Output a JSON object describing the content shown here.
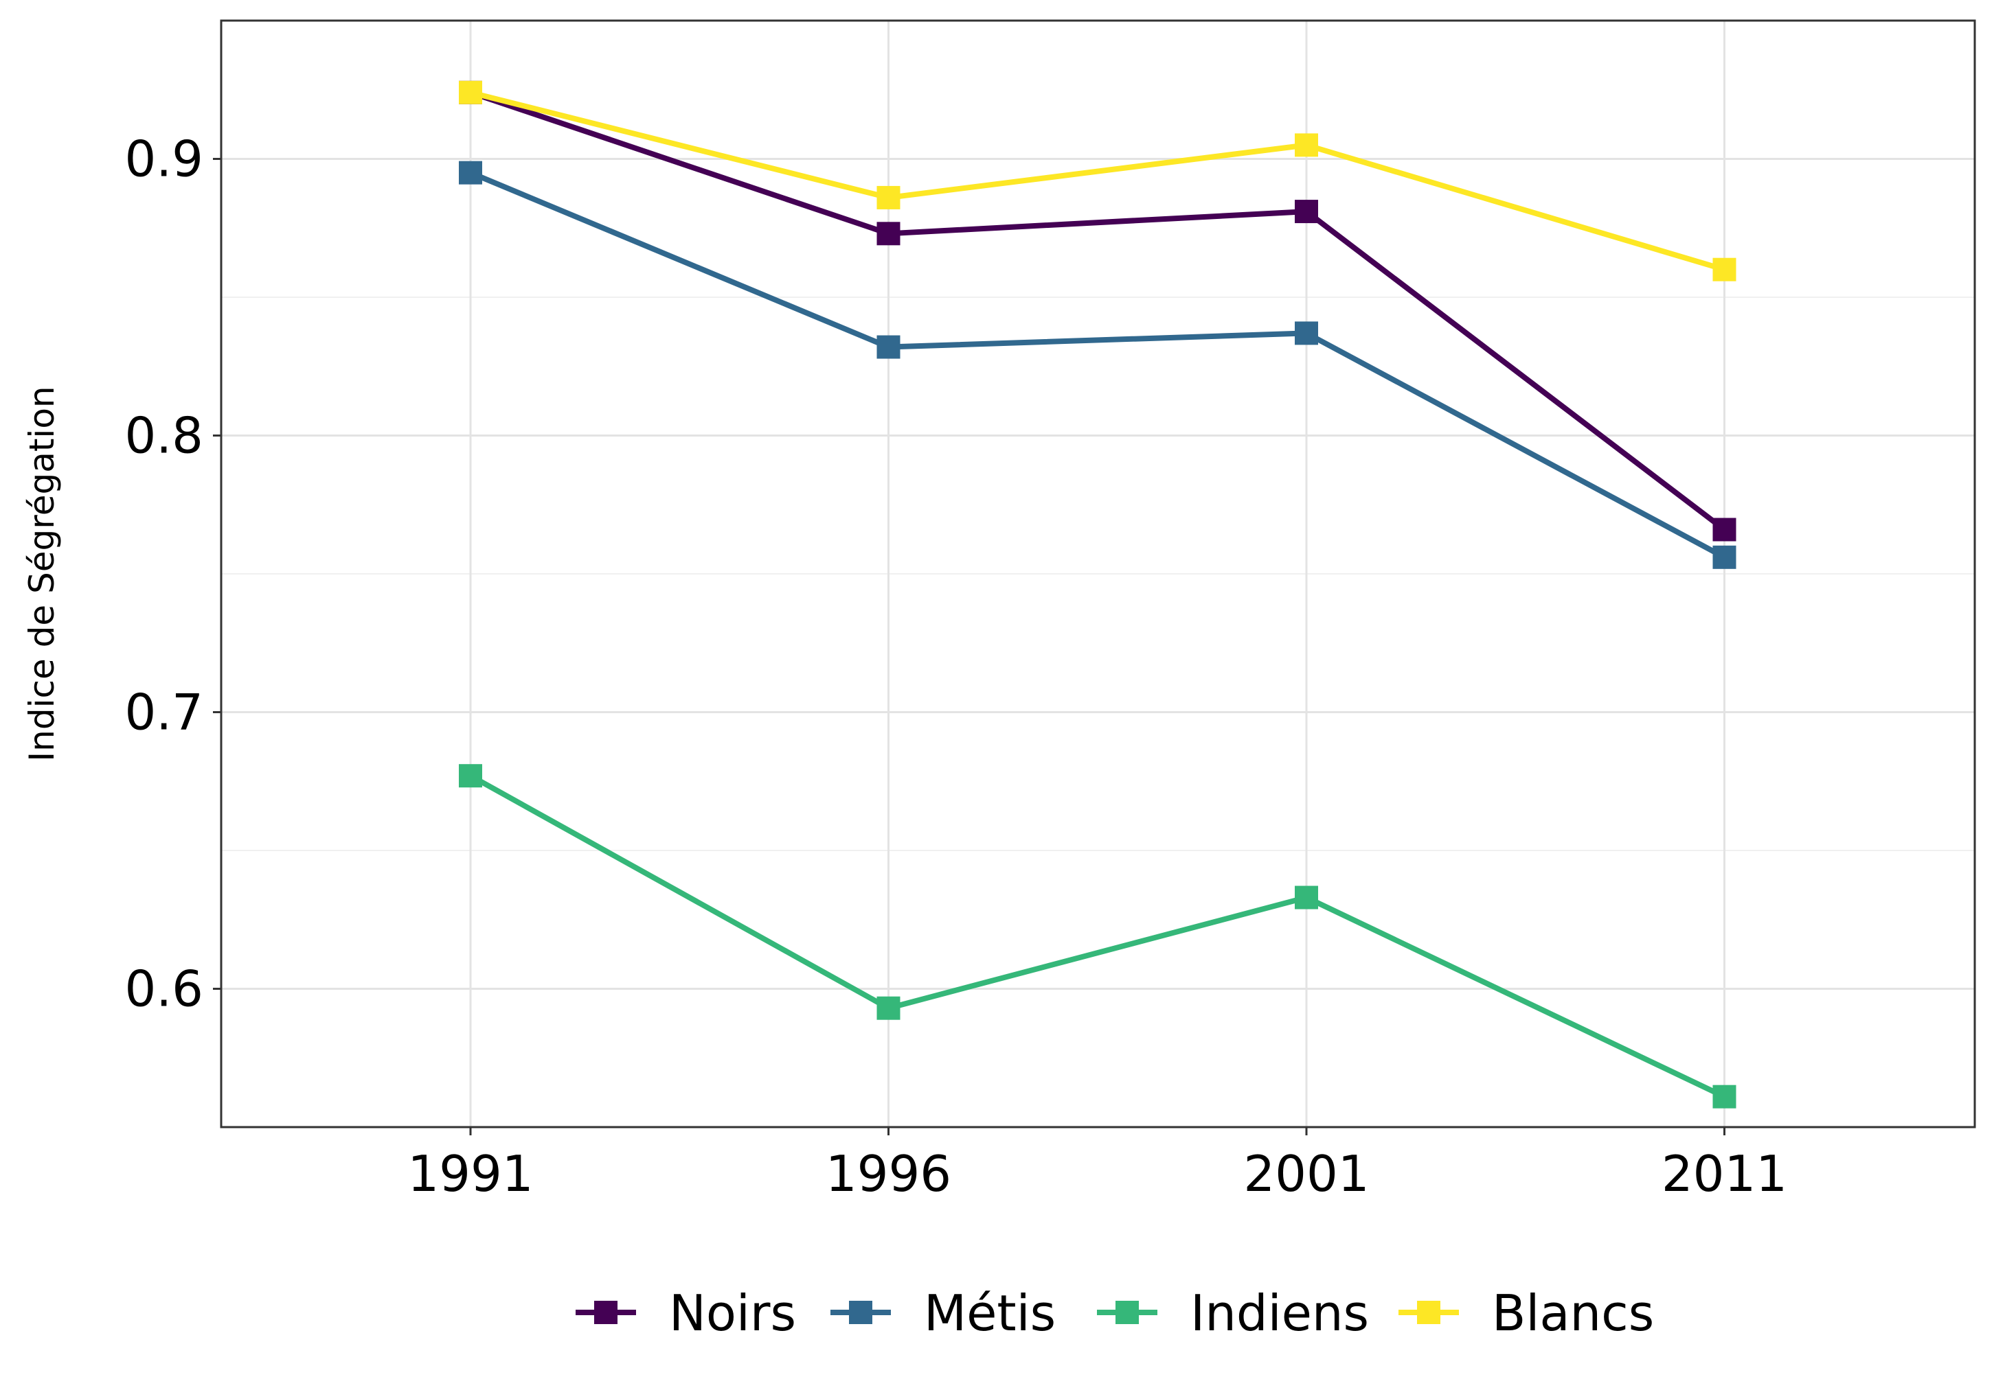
{
  "chart_data": {
    "type": "line",
    "title": "",
    "xlabel": "",
    "ylabel": "Indice de Ségrégation",
    "categories": [
      "1991",
      "1996",
      "2001",
      "2011"
    ],
    "ylim": [
      0.55,
      0.95
    ],
    "yticks": [
      "0.6",
      "0.7",
      "0.8",
      "0.9"
    ],
    "grid": true,
    "legend_position": "bottom",
    "marker": "square",
    "series": [
      {
        "name": "Noirs",
        "color": "#440154",
        "values": [
          0.924,
          0.873,
          0.881,
          0.766
        ]
      },
      {
        "name": "Métis",
        "color": "#31688E",
        "values": [
          0.895,
          0.832,
          0.837,
          0.756
        ]
      },
      {
        "name": "Indiens",
        "color": "#35B779",
        "values": [
          0.677,
          0.593,
          0.633,
          0.561
        ]
      },
      {
        "name": "Blancs",
        "color": "#FDE725",
        "values": [
          0.924,
          0.886,
          0.905,
          0.86
        ]
      }
    ]
  }
}
